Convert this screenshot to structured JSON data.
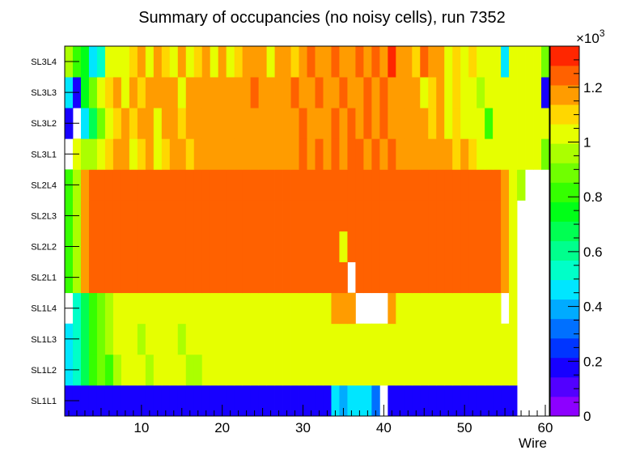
{
  "chart_data": {
    "type": "heatmap",
    "title": "Summary of occupancies (no noisy cells), run 7352",
    "xlabel": "Wire",
    "ylabel": "",
    "xlim": [
      0.5,
      60.5
    ],
    "x_ticks": [
      10,
      20,
      30,
      40,
      50,
      60
    ],
    "y_categories": [
      "SL1L1",
      "SL1L2",
      "SL1L3",
      "SL1L4",
      "SL2L1",
      "SL2L2",
      "SL2L3",
      "SL2L4",
      "SL3L1",
      "SL3L2",
      "SL3L3",
      "SL3L4"
    ],
    "zlim": [
      0,
      1350
    ],
    "z_ticks": [
      0,
      200,
      400,
      600,
      800,
      1000,
      1200
    ],
    "z_tick_labels": [
      "0",
      "0.2",
      "0.4",
      "0.6",
      "0.8",
      "1",
      "1.2"
    ],
    "z_exponent_label": "×10",
    "z_exponent": "3",
    "palette": [
      "#8d00ff",
      "#5200ff",
      "#1700ff",
      "#0035ff",
      "#0070ff",
      "#00abff",
      "#00e6ff",
      "#00ffc8",
      "#00ff8d",
      "#00ff52",
      "#00ff17",
      "#35ff00",
      "#70ff00",
      "#abff00",
      "#e6ff00",
      "#ffd700",
      "#ff9c00",
      "#ff6100",
      "#ff2600"
    ],
    "rows": [
      {
        "label": "SL1L1",
        "values": [
          190,
          190,
          190,
          190,
          190,
          190,
          190,
          190,
          190,
          190,
          190,
          190,
          190,
          190,
          190,
          190,
          190,
          190,
          190,
          190,
          190,
          190,
          190,
          190,
          190,
          190,
          190,
          190,
          190,
          190,
          190,
          190,
          190,
          450,
          420,
          470,
          430,
          460,
          330,
          null,
          190,
          190,
          190,
          190,
          190,
          190,
          190,
          190,
          190,
          190,
          190,
          190,
          190,
          190,
          190,
          190,
          null,
          null,
          null,
          null
        ]
      },
      {
        "label": "SL1L2",
        "values": [
          450,
          560,
          700,
          820,
          880,
          850,
          950,
          1000,
          1050,
          1050,
          950,
          1050,
          1000,
          1050,
          1050,
          950,
          950,
          1000,
          1050,
          1050,
          1000,
          1050,
          1050,
          1050,
          1050,
          1050,
          1050,
          1050,
          1050,
          1050,
          1050,
          1050,
          1050,
          1050,
          1050,
          1050,
          1050,
          1050,
          1050,
          1000,
          1050,
          1050,
          1050,
          1050,
          1050,
          1050,
          1050,
          1050,
          1050,
          1050,
          1050,
          1050,
          1050,
          1050,
          1050,
          1050,
          null,
          null,
          null,
          null
        ]
      },
      {
        "label": "SL1L3",
        "values": [
          450,
          560,
          700,
          820,
          880,
          950,
          1000,
          1050,
          1050,
          950,
          1050,
          1050,
          1000,
          1050,
          950,
          1050,
          1050,
          1000,
          1050,
          1050,
          1050,
          1000,
          1050,
          1050,
          1050,
          1050,
          1050,
          1050,
          1050,
          1050,
          1050,
          1050,
          1050,
          1050,
          1050,
          1050,
          1050,
          1050,
          1050,
          1050,
          1050,
          1050,
          1050,
          1050,
          1050,
          1050,
          1050,
          1050,
          1050,
          1050,
          1050,
          1050,
          1050,
          1050,
          1050,
          1050,
          null,
          null,
          null,
          null
        ]
      },
      {
        "label": "SL1L4",
        "values": [
          null,
          560,
          700,
          820,
          880,
          950,
          1000,
          1050,
          1050,
          1000,
          1050,
          1050,
          1050,
          1000,
          1050,
          1050,
          1050,
          1050,
          1050,
          1050,
          1050,
          1050,
          1050,
          1050,
          1050,
          1050,
          1050,
          1050,
          1050,
          1050,
          1050,
          1050,
          1050,
          1150,
          1150,
          1150,
          null,
          null,
          null,
          null,
          1150,
          1050,
          1050,
          1050,
          1050,
          1050,
          1050,
          1050,
          1050,
          1050,
          1050,
          1050,
          1050,
          1050,
          null,
          1050,
          null,
          null,
          null,
          null
        ]
      },
      {
        "label": "SL2L1",
        "values": [
          800,
          950,
          1150,
          1250,
          1250,
          1250,
          1250,
          1250,
          1250,
          1250,
          1250,
          1250,
          1250,
          1250,
          1250,
          1250,
          1250,
          1250,
          1250,
          1250,
          1250,
          1250,
          1250,
          1250,
          1250,
          1250,
          1250,
          1250,
          1250,
          1250,
          1250,
          1250,
          1250,
          1250,
          1250,
          null,
          1250,
          1250,
          1250,
          1250,
          1250,
          1250,
          1250,
          1250,
          1250,
          1250,
          1250,
          1250,
          1250,
          1250,
          1250,
          1250,
          1250,
          1250,
          1150,
          1050,
          null,
          null,
          null,
          null
        ]
      },
      {
        "label": "SL2L2",
        "values": [
          800,
          950,
          1150,
          1250,
          1250,
          1250,
          1250,
          1250,
          1250,
          1250,
          1250,
          1250,
          1250,
          1250,
          1250,
          1250,
          1250,
          1250,
          1250,
          1250,
          1250,
          1250,
          1250,
          1250,
          1250,
          1250,
          1250,
          1250,
          1250,
          1250,
          1250,
          1250,
          1250,
          1250,
          1050,
          1250,
          1250,
          1250,
          1250,
          1250,
          1250,
          1250,
          1250,
          1250,
          1250,
          1250,
          1250,
          1250,
          1250,
          1250,
          1250,
          1250,
          1250,
          1250,
          1150,
          1050,
          null,
          null,
          null,
          null
        ]
      },
      {
        "label": "SL2L3",
        "values": [
          800,
          950,
          1150,
          1250,
          1250,
          1250,
          1250,
          1250,
          1250,
          1250,
          1250,
          1250,
          1250,
          1250,
          1250,
          1250,
          1250,
          1250,
          1250,
          1250,
          1250,
          1250,
          1250,
          1250,
          1250,
          1250,
          1250,
          1250,
          1250,
          1250,
          1250,
          1250,
          1250,
          1250,
          1250,
          1250,
          1250,
          1250,
          1250,
          1250,
          1250,
          1250,
          1250,
          1250,
          1250,
          1250,
          1250,
          1250,
          1250,
          1250,
          1250,
          1250,
          1250,
          1250,
          1150,
          1050,
          null,
          null,
          null,
          null
        ]
      },
      {
        "label": "SL2L4",
        "values": [
          800,
          950,
          1150,
          1250,
          1250,
          1250,
          1250,
          1250,
          1250,
          1250,
          1250,
          1250,
          1250,
          1250,
          1250,
          1250,
          1250,
          1250,
          1250,
          1250,
          1250,
          1250,
          1250,
          1250,
          1250,
          1250,
          1250,
          1250,
          1250,
          1250,
          1250,
          1250,
          1250,
          1250,
          1250,
          1250,
          1250,
          1250,
          1250,
          1250,
          1250,
          1250,
          1250,
          1250,
          1250,
          1250,
          1250,
          1250,
          1250,
          1250,
          1250,
          1250,
          1250,
          1250,
          1150,
          1050,
          950,
          null,
          null,
          null
        ]
      },
      {
        "label": "SL3L1",
        "values": [
          null,
          1050,
          950,
          950,
          1050,
          1100,
          1150,
          1150,
          1050,
          1100,
          1150,
          1050,
          1100,
          1150,
          1150,
          1100,
          1150,
          1150,
          1200,
          1150,
          1150,
          1200,
          1150,
          1150,
          1200,
          1150,
          1200,
          1150,
          1200,
          1250,
          1200,
          1250,
          1200,
          1250,
          1200,
          1250,
          1250,
          1200,
          1250,
          1200,
          1250,
          1200,
          1150,
          1200,
          1150,
          1200,
          1150,
          1150,
          1100,
          1150,
          1100,
          1050,
          1050,
          1050,
          1050,
          1050,
          1050,
          1050,
          1050,
          900
        ]
      },
      {
        "label": "SL3L2",
        "values": [
          150,
          null,
          450,
          650,
          900,
          1050,
          1100,
          1150,
          1100,
          1150,
          1200,
          1050,
          1150,
          1150,
          1100,
          1200,
          1150,
          1200,
          1150,
          1200,
          1150,
          1200,
          1200,
          1150,
          1200,
          1150,
          1200,
          1150,
          1200,
          1250,
          1150,
          1200,
          1200,
          1250,
          1200,
          1250,
          1200,
          1250,
          1200,
          1250,
          1200,
          1150,
          1200,
          1150,
          1200,
          1100,
          1150,
          1050,
          1100,
          1000,
          1050,
          1000,
          850,
          1050,
          1000,
          1050,
          1000,
          1050,
          1000,
          1050
        ]
      },
      {
        "label": "SL3L3",
        "values": [
          450,
          150,
          750,
          900,
          1050,
          1100,
          1150,
          1050,
          1150,
          1100,
          1150,
          1200,
          1150,
          1200,
          1050,
          1150,
          1200,
          1150,
          1200,
          1150,
          1200,
          1150,
          1200,
          1250,
          1200,
          1150,
          1200,
          1150,
          1250,
          1200,
          1150,
          1250,
          1200,
          1150,
          1250,
          1200,
          1150,
          1250,
          1200,
          1250,
          1200,
          1150,
          1200,
          1150,
          1050,
          1100,
          1150,
          1050,
          1100,
          1000,
          1050,
          950,
          1000,
          1050,
          1000,
          1050,
          1000,
          1050,
          1000,
          150
        ]
      },
      {
        "label": "SL3L4",
        "values": [
          950,
          850,
          750,
          450,
          550,
          1050,
          1050,
          1050,
          1100,
          1150,
          1050,
          1150,
          1100,
          1050,
          1150,
          1050,
          1100,
          1150,
          1050,
          1150,
          1050,
          1100,
          1150,
          1200,
          1150,
          1050,
          1200,
          1150,
          1100,
          1200,
          1250,
          1150,
          1200,
          1250,
          1150,
          1200,
          1250,
          1150,
          1250,
          1200,
          1300,
          1150,
          1200,
          1100,
          1250,
          1200,
          1150,
          1050,
          1100,
          1000,
          1100,
          1000,
          1050,
          1000,
          450,
          1000,
          1050,
          1000,
          1000,
          900
        ]
      }
    ]
  }
}
